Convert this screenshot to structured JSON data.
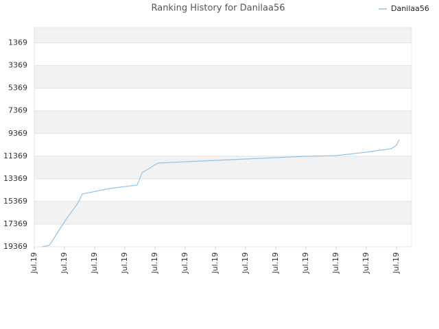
{
  "chart_data": {
    "type": "line",
    "title": "Ranking History for Danilaa56",
    "series": [
      {
        "name": "Danilaa56",
        "color": "#8ec4ec",
        "x": [
          0.27,
          0.5,
          1.05,
          1.45,
          1.59,
          2.5,
          3.41,
          3.57,
          3.91,
          4.09,
          5,
          6,
          7,
          8,
          9,
          10,
          11,
          11.82,
          12,
          12.09
        ],
        "values": [
          19369,
          19248,
          16948,
          15496,
          14709,
          14225,
          13922,
          12833,
          12288,
          11985,
          11864,
          11743,
          11622,
          11501,
          11380,
          11319,
          11016,
          10714,
          10411,
          9927
        ]
      }
    ],
    "ylim": [
      19369,
      0
    ],
    "yticks": [
      1369,
      3369,
      5369,
      7369,
      9369,
      11369,
      13369,
      15369,
      17369,
      19369
    ],
    "xlim": [
      0,
      12.5
    ],
    "xticks": [
      {
        "value": 0,
        "label": "Jul.19"
      },
      {
        "value": 1,
        "label": "Jul.19"
      },
      {
        "value": 2,
        "label": "Jul.19"
      },
      {
        "value": 3,
        "label": "Jul.19"
      },
      {
        "value": 4,
        "label": "Jul.19"
      },
      {
        "value": 5,
        "label": "Jul.19"
      },
      {
        "value": 6,
        "label": "Jul.19"
      },
      {
        "value": 7,
        "label": "Jul.19"
      },
      {
        "value": 8,
        "label": "Jul.19"
      },
      {
        "value": 9,
        "label": "Jul.19"
      },
      {
        "value": 10,
        "label": "Jul.19"
      },
      {
        "value": 11,
        "label": "Jul.19"
      },
      {
        "value": 12,
        "label": "Jul.19"
      }
    ],
    "grid": true,
    "legend": "top-right"
  }
}
